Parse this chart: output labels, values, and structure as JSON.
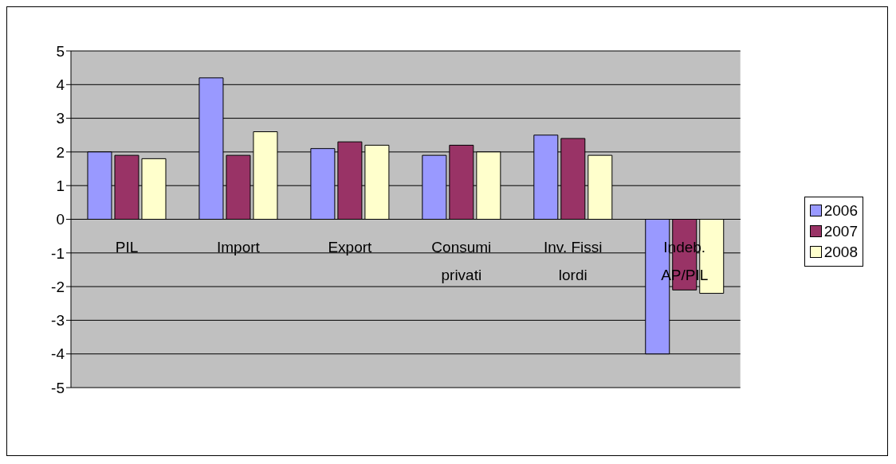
{
  "chart_data": {
    "type": "bar",
    "categories": [
      "PIL",
      "Import",
      "Export",
      "Consumi\nprivati",
      "Inv. Fissi\nlordi",
      "Indeb.\nAP/PIL"
    ],
    "series": [
      {
        "name": "2006",
        "color": "#9999ff",
        "values": [
          2.0,
          4.2,
          2.1,
          1.9,
          2.5,
          -4.0
        ]
      },
      {
        "name": "2007",
        "color": "#993366",
        "values": [
          1.9,
          1.9,
          2.3,
          2.2,
          2.4,
          -2.1
        ]
      },
      {
        "name": "2008",
        "color": "#ffffcc",
        "values": [
          1.8,
          2.6,
          2.2,
          2.0,
          1.9,
          -2.2
        ]
      }
    ],
    "ylim": [
      -5,
      5
    ],
    "yticks": [
      -5,
      -4,
      -3,
      -2,
      -1,
      0,
      1,
      2,
      3,
      4,
      5
    ],
    "grid": "y",
    "legend": "right"
  }
}
